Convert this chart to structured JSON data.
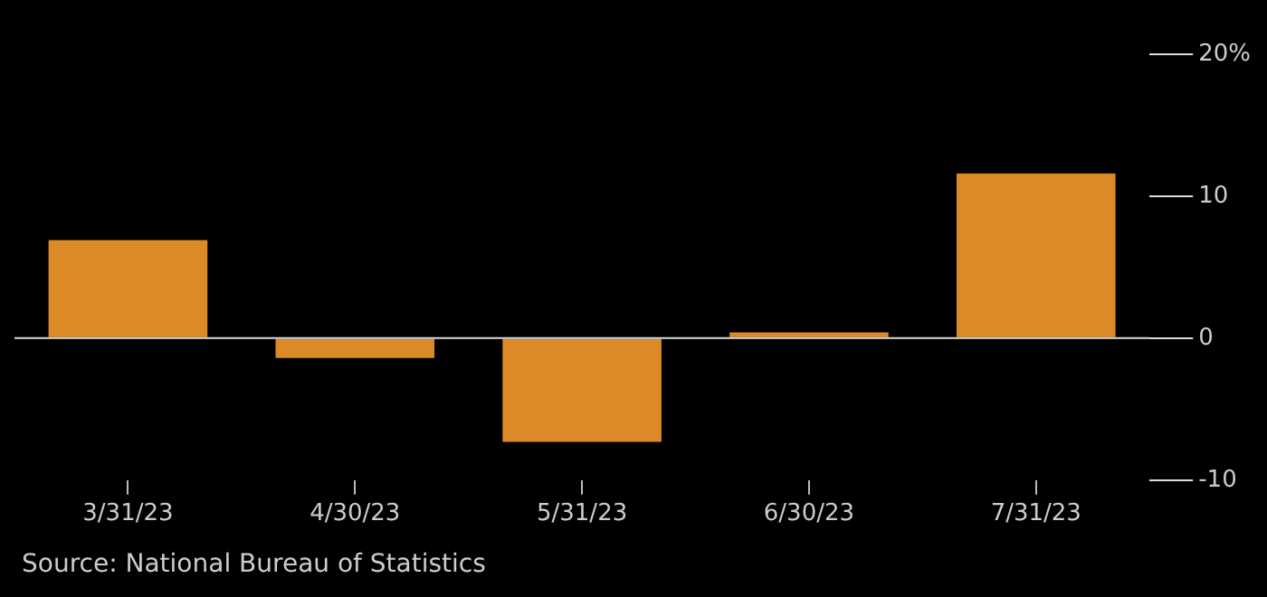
{
  "chart_data": {
    "type": "bar",
    "categories": [
      "3/31/23",
      "4/30/23",
      "5/31/23",
      "6/30/23",
      "7/31/23"
    ],
    "values": [
      6.9,
      -1.4,
      -7.3,
      0.4,
      11.6
    ],
    "color": "#dc8a27",
    "ylim": [
      -10,
      20
    ],
    "yticks": [
      {
        "value": -10,
        "label": "-10"
      },
      {
        "value": 0,
        "label": "0"
      },
      {
        "value": 10,
        "label": "10"
      },
      {
        "value": 20,
        "label": "20%"
      }
    ],
    "grid": false,
    "legend": false,
    "ref_lines": [
      {
        "axis": "y",
        "value": 0,
        "color": "#dddddd"
      }
    ],
    "annotations": [
      "Source: National Bureau of Statistics"
    ]
  }
}
